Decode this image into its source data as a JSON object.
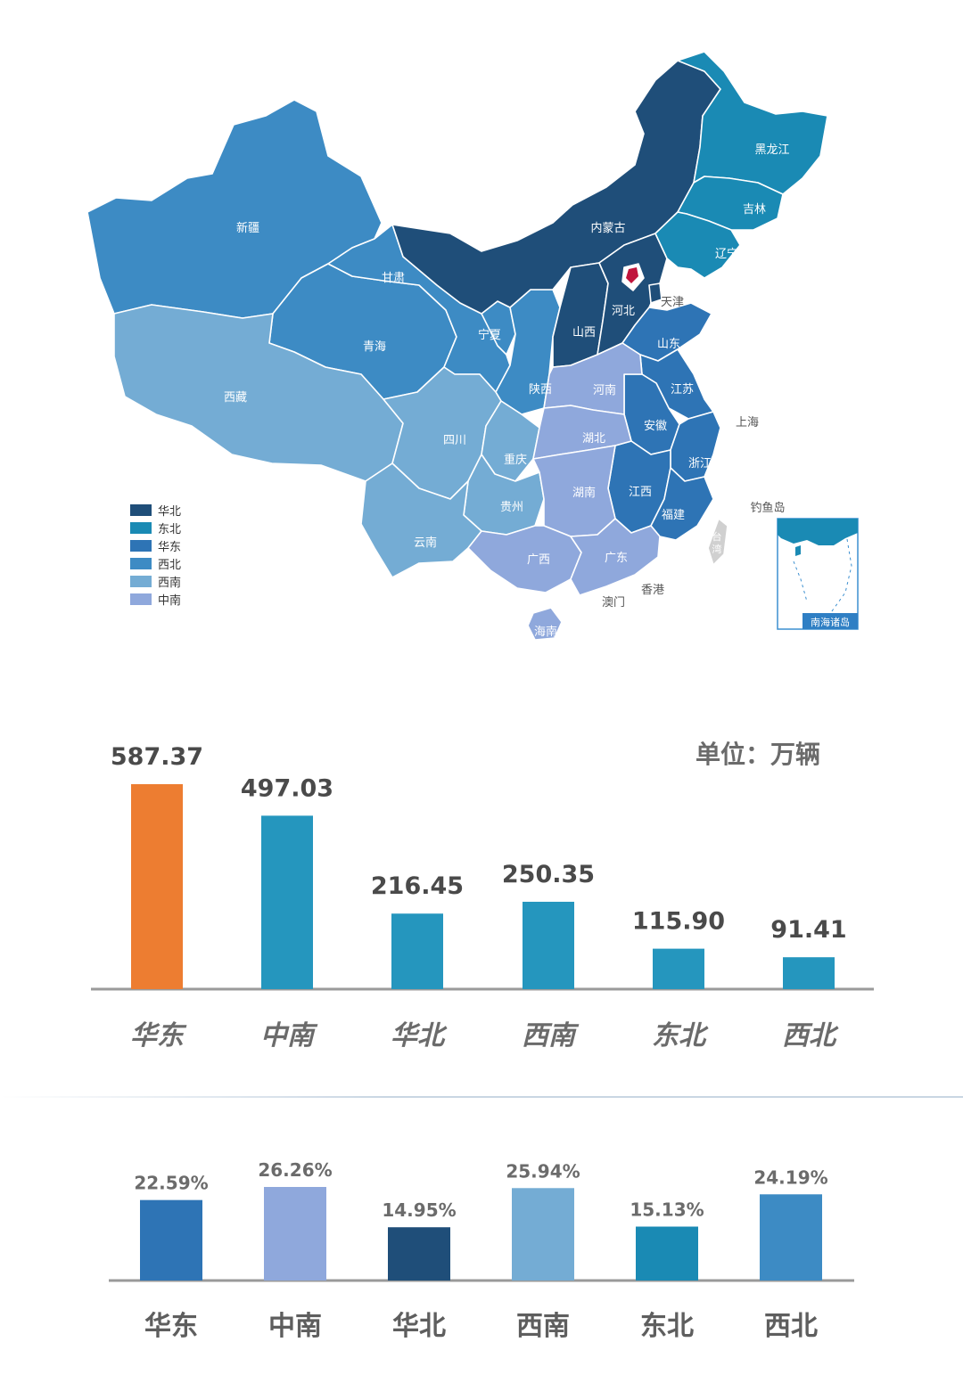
{
  "map": {
    "region_colors": {
      "华北": "#1f4e79",
      "东北": "#1a8ab4",
      "华东": "#2e74b5",
      "西北": "#3d8bc4",
      "西南": "#74acd4",
      "中南": "#8fa8dc"
    },
    "legend": [
      "华北",
      "东北",
      "华东",
      "西北",
      "西南",
      "中南"
    ],
    "provinces": {
      "xinjiang": "新疆",
      "xizang": "西藏",
      "qinghai": "青海",
      "gansu": "甘肃",
      "neimenggu": "内蒙古",
      "heilongjiang": "黑龙江",
      "jilin": "吉林",
      "liaoning": "辽宁",
      "hebei": "河北",
      "tianjin": "天津",
      "shanxi": "山西",
      "shandong": "山东",
      "ningxia": "宁夏",
      "shaanxi": "陕西",
      "henan": "河南",
      "jiangsu": "江苏",
      "anhui": "安徽",
      "shanghai": "上海",
      "sichuan": "四川",
      "chongqing": "重庆",
      "hubei": "湖北",
      "zhejiang": "浙江",
      "hunan": "湖南",
      "jiangxi": "江西",
      "guizhou": "贵州",
      "fujian": "福建",
      "yunnan": "云南",
      "guangxi": "广西",
      "guangdong": "广东",
      "taiwan": "台湾",
      "hongkong": "香港",
      "macau": "澳门",
      "hainan": "海南",
      "diaoyudao": "钓鱼岛",
      "nanhai": "南海诸岛"
    }
  },
  "chart_data": [
    {
      "type": "bar",
      "categories": [
        "华东",
        "中南",
        "华北",
        "西南",
        "东北",
        "西北"
      ],
      "values": [
        587.37,
        497.03,
        216.45,
        250.35,
        115.9,
        91.41
      ],
      "value_labels": [
        "587.37",
        "497.03",
        "216.45",
        "250.35",
        "115.90",
        "91.41"
      ],
      "unit_label": "单位：万辆",
      "colors": [
        "#ed7d31",
        "#2596be",
        "#2596be",
        "#2596be",
        "#2596be",
        "#2596be"
      ],
      "ylim": [
        0,
        600
      ],
      "grid": false
    },
    {
      "type": "bar",
      "categories": [
        "华东",
        "中南",
        "华北",
        "西南",
        "东北",
        "西北"
      ],
      "values": [
        22.59,
        26.26,
        14.95,
        25.94,
        15.13,
        24.19
      ],
      "value_labels": [
        "22.59%",
        "26.26%",
        "14.95%",
        "25.94%",
        "15.13%",
        "24.19%"
      ],
      "colors": [
        "#2e74b5",
        "#8fa8dc",
        "#1f4e79",
        "#74acd4",
        "#1a8ab4",
        "#3d8bc4"
      ],
      "ylim": [
        0,
        27
      ],
      "grid": false
    }
  ]
}
